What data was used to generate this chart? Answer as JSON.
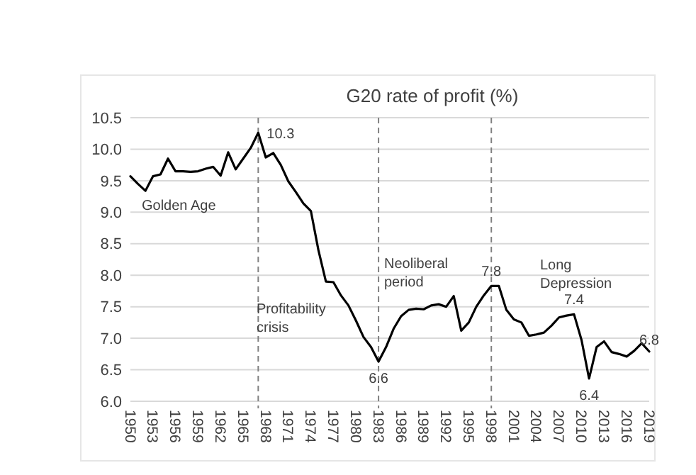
{
  "chart_data": {
    "type": "line",
    "title": "G20 rate of profit (%)",
    "x": [
      1950,
      1951,
      1952,
      1953,
      1954,
      1955,
      1956,
      1957,
      1958,
      1959,
      1960,
      1961,
      1962,
      1963,
      1964,
      1965,
      1966,
      1967,
      1968,
      1969,
      1970,
      1971,
      1972,
      1973,
      1974,
      1975,
      1976,
      1977,
      1978,
      1979,
      1980,
      1981,
      1982,
      1983,
      1984,
      1985,
      1986,
      1987,
      1988,
      1989,
      1990,
      1991,
      1992,
      1993,
      1994,
      1995,
      1996,
      1997,
      1998,
      1999,
      2000,
      2001,
      2002,
      2003,
      2004,
      2005,
      2006,
      2007,
      2008,
      2009,
      2010,
      2011,
      2012,
      2013,
      2014,
      2015,
      2016,
      2017,
      2018,
      2019
    ],
    "series": [
      {
        "color": "#000000",
        "values": [
          9.57,
          9.45,
          9.34,
          9.57,
          9.6,
          9.85,
          9.65,
          9.65,
          9.64,
          9.65,
          9.69,
          9.72,
          9.58,
          9.95,
          9.68,
          9.85,
          10.02,
          10.26,
          9.87,
          9.94,
          9.75,
          9.49,
          9.32,
          9.14,
          9.02,
          8.4,
          7.9,
          7.89,
          7.68,
          7.52,
          7.28,
          7.02,
          6.86,
          6.63,
          6.86,
          7.15,
          7.35,
          7.45,
          7.47,
          7.46,
          7.52,
          7.54,
          7.5,
          7.67,
          7.12,
          7.25,
          7.5,
          7.68,
          7.83,
          7.83,
          7.45,
          7.3,
          7.25,
          7.04,
          7.06,
          7.09,
          7.2,
          7.33,
          7.36,
          7.38,
          6.97,
          6.36,
          6.86,
          6.95,
          6.78,
          6.75,
          6.71,
          6.8,
          6.92,
          6.79
        ]
      }
    ],
    "xlim": [
      1950,
      2019
    ],
    "xticks": [
      1950,
      1953,
      1956,
      1959,
      1962,
      1965,
      1968,
      1971,
      1974,
      1977,
      1980,
      1983,
      1986,
      1989,
      1992,
      1995,
      1998,
      2001,
      2004,
      2007,
      2010,
      2013,
      2016,
      2019
    ],
    "ylim": [
      6.0,
      10.5
    ],
    "yticks": [
      {
        "value": 6,
        "label": "6.0"
      },
      {
        "value": 6.5,
        "label": "6.5"
      },
      {
        "value": 7,
        "label": "7.0"
      },
      {
        "value": 7.5,
        "label": "7.5"
      },
      {
        "value": 8,
        "label": "8.0"
      },
      {
        "value": 8.5,
        "label": "8.5"
      },
      {
        "value": 9,
        "label": "9.0"
      },
      {
        "value": 9.5,
        "label": "9.5"
      },
      {
        "value": 10,
        "label": "10.0"
      },
      {
        "value": 10.5,
        "label": "10.5"
      }
    ],
    "grid": "y",
    "marker": "none",
    "line_style": "solid",
    "ref_lines": [
      {
        "axis": "x",
        "value": 1967,
        "color": "#808080",
        "line_style": "dashed"
      },
      {
        "axis": "x",
        "value": 1983,
        "color": "#808080",
        "line_style": "dashed"
      },
      {
        "axis": "x",
        "value": 1998,
        "color": "#808080",
        "line_style": "dashed"
      }
    ],
    "annotations": [
      {
        "text": "10.3",
        "x": 1967,
        "y": 10.26
      },
      {
        "text": "6.6",
        "x": 1983,
        "y": 6.63
      },
      {
        "text": "7.8",
        "x": 1998,
        "y": 7.83
      },
      {
        "text": "7.4",
        "x": 2009,
        "y": 7.38
      },
      {
        "text": "6.4",
        "x": 2011,
        "y": 6.36
      },
      {
        "text": "6.8",
        "x": 2019,
        "y": 6.79
      },
      "Golden Age",
      "Profitability\ncrisis",
      "Neoliberal\nperiod",
      "Long\nDepression"
    ]
  }
}
